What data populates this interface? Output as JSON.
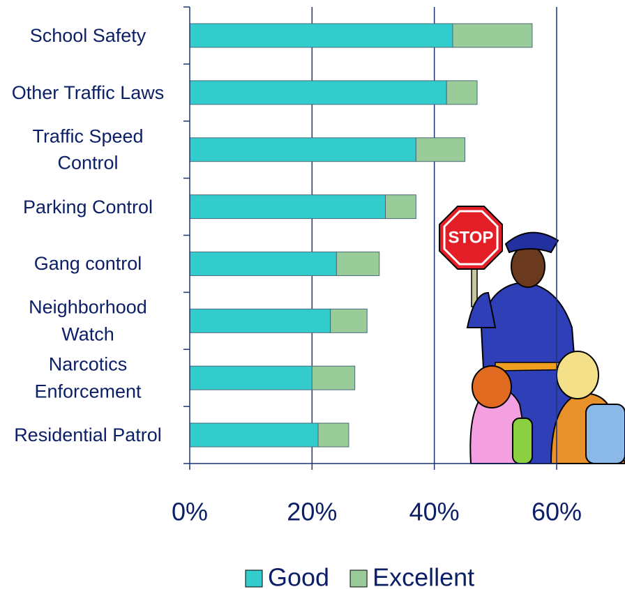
{
  "chart_data": {
    "type": "stacked-barh",
    "categories": [
      "School Safety",
      "Other Traffic Laws",
      "Traffic Speed Control",
      "Parking Control",
      "Gang control",
      "Neighborhood Watch",
      "Narcotics Enforcement",
      "Residential Patrol"
    ],
    "series": [
      {
        "name": "Good",
        "color": "#33cccc",
        "values": [
          43,
          42,
          37,
          32,
          24,
          23,
          20,
          21
        ]
      },
      {
        "name": "Excellent",
        "color": "#99cc99",
        "values": [
          13,
          5,
          8,
          5,
          7,
          6,
          7,
          5
        ]
      }
    ],
    "xlim": [
      0,
      60
    ],
    "xticks": [
      {
        "value": 0,
        "label": "0%"
      },
      {
        "value": 20,
        "label": "20%"
      },
      {
        "value": 40,
        "label": "40%"
      },
      {
        "value": 60,
        "label": "60%"
      }
    ],
    "grid": true,
    "legend": "bottom"
  },
  "illustration": {
    "sign_text": "STOP"
  }
}
